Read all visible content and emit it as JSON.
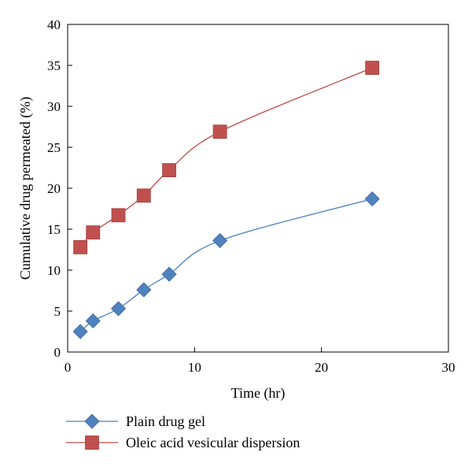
{
  "chart_data": {
    "type": "line",
    "xlabel": "Time (hr)",
    "ylabel": "Cumulative drug permeated (%)",
    "xlim": [
      0,
      30
    ],
    "ylim": [
      0,
      40
    ],
    "xticks": [
      0,
      10,
      20,
      30
    ],
    "yticks": [
      0,
      5,
      10,
      15,
      20,
      25,
      30,
      35,
      40
    ],
    "grid": false,
    "legend_position": "bottom-left",
    "series": [
      {
        "name": "Plain drug gel",
        "marker": "diamond",
        "color": "#4f81bd",
        "line_color": "#4a7ebb",
        "x": [
          1,
          2,
          4,
          6,
          8,
          12,
          24
        ],
        "y": [
          2.5,
          3.8,
          5.3,
          7.6,
          9.5,
          13.6,
          18.7
        ]
      },
      {
        "name": "Oleic acid vesicular dispersion",
        "marker": "square",
        "color": "#c0504d",
        "line_color": "#be4b48",
        "x": [
          1,
          2,
          4,
          6,
          8,
          12,
          24
        ],
        "y": [
          12.8,
          14.6,
          16.7,
          19.1,
          22.2,
          26.9,
          34.7
        ]
      }
    ]
  }
}
